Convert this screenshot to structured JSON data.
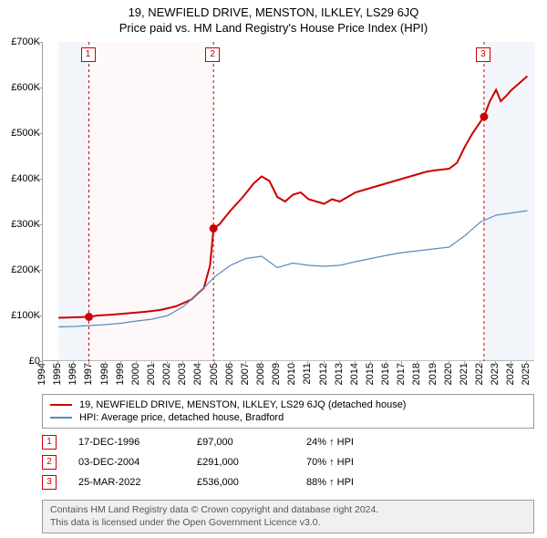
{
  "titles": {
    "main": "19, NEWFIELD DRIVE, MENSTON, ILKLEY, LS29 6JQ",
    "sub": "Price paid vs. HM Land Registry's House Price Index (HPI)"
  },
  "chart": {
    "type": "line",
    "background_color": "#ffffff",
    "axis_color": "#a0a0a0",
    "x": {
      "min": 1994,
      "max": 2025.5,
      "ticks": [
        1994,
        1995,
        1996,
        1997,
        1998,
        1999,
        2000,
        2001,
        2002,
        2003,
        2004,
        2005,
        2006,
        2007,
        2008,
        2009,
        2010,
        2011,
        2012,
        2013,
        2014,
        2015,
        2016,
        2017,
        2018,
        2019,
        2020,
        2021,
        2022,
        2023,
        2024,
        2025
      ]
    },
    "y": {
      "min": 0,
      "max": 700,
      "ticks": [
        0,
        100,
        200,
        300,
        400,
        500,
        600,
        700
      ],
      "tick_prefix": "£",
      "tick_suffix": "K"
    },
    "shaded_ranges": [
      {
        "from": 1995.0,
        "to": 1996.95,
        "color": "#d9e6f2"
      },
      {
        "from": 1996.95,
        "to": 2004.92,
        "color": "#fbeaea"
      },
      {
        "from": 2004.92,
        "to": 2022.23,
        "color": "#ffffff"
      },
      {
        "from": 2022.23,
        "to": 2025.5,
        "color": "#d9e6f2"
      }
    ],
    "vlines": [
      {
        "x": 1996.95,
        "color": "#cc0000"
      },
      {
        "x": 2004.92,
        "color": "#cc0000"
      },
      {
        "x": 2022.23,
        "color": "#cc0000"
      }
    ],
    "series": [
      {
        "id": "price_paid",
        "label": "19, NEWFIELD DRIVE, MENSTON, ILKLEY, LS29 6JQ (detached house)",
        "color": "#cc0000",
        "width": 2,
        "points": [
          [
            1995.0,
            95
          ],
          [
            1996.0,
            96
          ],
          [
            1996.95,
            97
          ],
          [
            1997.5,
            100
          ],
          [
            1998.5,
            102
          ],
          [
            1999.5,
            105
          ],
          [
            2000.5,
            108
          ],
          [
            2001.5,
            112
          ],
          [
            2002.5,
            120
          ],
          [
            2003.5,
            135
          ],
          [
            2004.3,
            160
          ],
          [
            2004.7,
            210
          ],
          [
            2004.92,
            291
          ],
          [
            2005.3,
            300
          ],
          [
            2006.0,
            330
          ],
          [
            2006.8,
            360
          ],
          [
            2007.5,
            390
          ],
          [
            2008.0,
            405
          ],
          [
            2008.5,
            395
          ],
          [
            2009.0,
            360
          ],
          [
            2009.5,
            350
          ],
          [
            2010.0,
            365
          ],
          [
            2010.5,
            370
          ],
          [
            2011.0,
            355
          ],
          [
            2011.5,
            350
          ],
          [
            2012.0,
            345
          ],
          [
            2012.5,
            355
          ],
          [
            2013.0,
            350
          ],
          [
            2013.5,
            360
          ],
          [
            2014.0,
            370
          ],
          [
            2014.5,
            375
          ],
          [
            2015.0,
            380
          ],
          [
            2015.5,
            385
          ],
          [
            2016.0,
            390
          ],
          [
            2016.5,
            395
          ],
          [
            2017.0,
            400
          ],
          [
            2017.5,
            405
          ],
          [
            2018.0,
            410
          ],
          [
            2018.5,
            415
          ],
          [
            2019.0,
            418
          ],
          [
            2019.5,
            420
          ],
          [
            2020.0,
            422
          ],
          [
            2020.5,
            435
          ],
          [
            2021.0,
            470
          ],
          [
            2021.5,
            500
          ],
          [
            2022.0,
            525
          ],
          [
            2022.23,
            536
          ],
          [
            2022.6,
            570
          ],
          [
            2023.0,
            595
          ],
          [
            2023.3,
            570
          ],
          [
            2023.6,
            580
          ],
          [
            2024.0,
            595
          ],
          [
            2024.5,
            610
          ],
          [
            2025.0,
            625
          ]
        ]
      },
      {
        "id": "hpi",
        "label": "HPI: Average price, detached house, Bradford",
        "color": "#5b8bbf",
        "width": 1.2,
        "points": [
          [
            1995.0,
            75
          ],
          [
            1996.0,
            76
          ],
          [
            1997.0,
            78
          ],
          [
            1998.0,
            80
          ],
          [
            1999.0,
            83
          ],
          [
            2000.0,
            88
          ],
          [
            2001.0,
            92
          ],
          [
            2002.0,
            100
          ],
          [
            2003.0,
            120
          ],
          [
            2004.0,
            150
          ],
          [
            2005.0,
            185
          ],
          [
            2006.0,
            210
          ],
          [
            2007.0,
            225
          ],
          [
            2008.0,
            230
          ],
          [
            2009.0,
            205
          ],
          [
            2010.0,
            215
          ],
          [
            2011.0,
            210
          ],
          [
            2012.0,
            208
          ],
          [
            2013.0,
            210
          ],
          [
            2014.0,
            218
          ],
          [
            2015.0,
            225
          ],
          [
            2016.0,
            232
          ],
          [
            2017.0,
            238
          ],
          [
            2018.0,
            242
          ],
          [
            2019.0,
            246
          ],
          [
            2020.0,
            250
          ],
          [
            2021.0,
            275
          ],
          [
            2022.0,
            305
          ],
          [
            2023.0,
            320
          ],
          [
            2024.0,
            325
          ],
          [
            2025.0,
            330
          ]
        ]
      }
    ],
    "sale_markers": [
      {
        "n": "1",
        "x": 1996.95,
        "y": 97,
        "badge_y": 690
      },
      {
        "n": "2",
        "x": 2004.92,
        "y": 291,
        "badge_y": 690
      },
      {
        "n": "3",
        "x": 2022.23,
        "y": 536,
        "badge_y": 690
      }
    ],
    "marker_color": "#cc0000",
    "marker_radius": 4.5
  },
  "legend": {
    "items": [
      {
        "color": "#cc0000",
        "label": "19, NEWFIELD DRIVE, MENSTON, ILKLEY, LS29 6JQ (detached house)"
      },
      {
        "color": "#5b8bbf",
        "label": "HPI: Average price, detached house, Bradford"
      }
    ]
  },
  "sales": [
    {
      "n": "1",
      "date": "17-DEC-1996",
      "price": "£97,000",
      "pct": "24% ↑ HPI"
    },
    {
      "n": "2",
      "date": "03-DEC-2004",
      "price": "£291,000",
      "pct": "70% ↑ HPI"
    },
    {
      "n": "3",
      "date": "25-MAR-2022",
      "price": "£536,000",
      "pct": "88% ↑ HPI"
    }
  ],
  "footer": {
    "line1": "Contains HM Land Registry data © Crown copyright and database right 2024.",
    "line2": "This data is licensed under the Open Government Licence v3.0."
  }
}
